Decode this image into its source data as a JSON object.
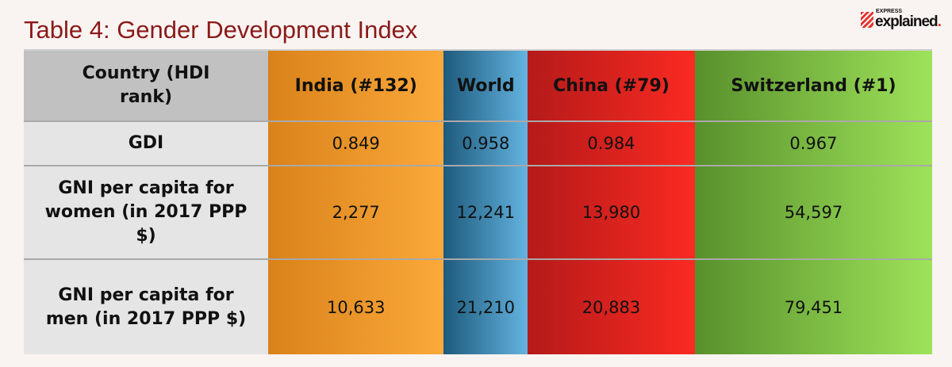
{
  "title": "Table 4: Gender Development Index",
  "logo": {
    "top": "EXPRESS",
    "main": "explained",
    "dot": "."
  },
  "header": {
    "label": "Country (HDI rank)",
    "cols": [
      "India (#132)",
      "World",
      "China (#79)",
      "Switzerland (#1)"
    ]
  },
  "rows": [
    {
      "label": "GDI",
      "values": [
        "0.849",
        "0.958",
        "0.984",
        "0.967"
      ]
    },
    {
      "label": "GNI per capita for women (in 2017 PPP $)",
      "values": [
        "2,277",
        "12,241",
        "13,980",
        "54,597"
      ]
    },
    {
      "label": "GNI per capita for men (in 2017 PPP $)",
      "values": [
        "10,633",
        "21,210",
        "20,883",
        "79,451"
      ]
    }
  ]
}
